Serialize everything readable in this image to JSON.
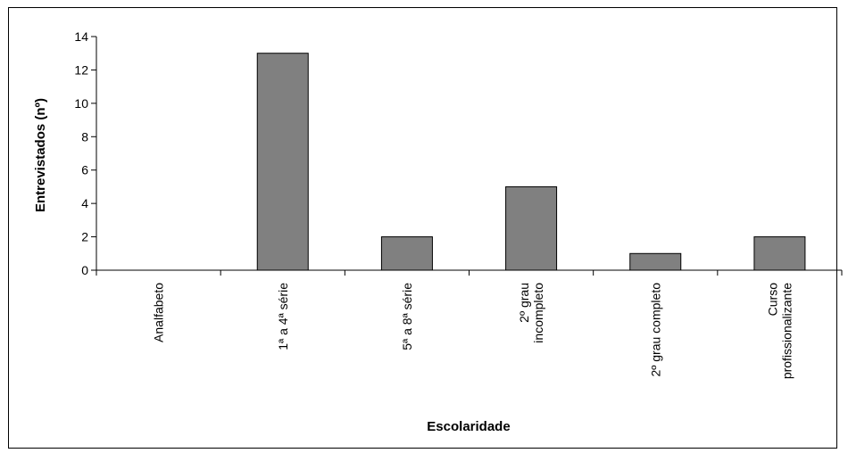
{
  "chart_data": {
    "type": "bar",
    "title": "",
    "xlabel": "Escolaridade",
    "ylabel": "Entrevistados (nº)",
    "categories": [
      [
        "Analfabeto"
      ],
      [
        "1ª a 4ª série"
      ],
      [
        "5ª a 8ª série"
      ],
      [
        "2º grau",
        "incompleto"
      ],
      [
        "2º grau completo"
      ],
      [
        "Curso",
        "profissionalizante"
      ]
    ],
    "values": [
      0,
      13,
      2,
      5,
      1,
      2
    ],
    "ylim": [
      0,
      14
    ],
    "yticks": [
      0,
      2,
      4,
      6,
      8,
      10,
      12,
      14
    ],
    "grid": false,
    "legend": "none",
    "colors": {
      "bar_fill": "#808080",
      "bar_stroke": "#000000",
      "axis": "#000000"
    }
  }
}
